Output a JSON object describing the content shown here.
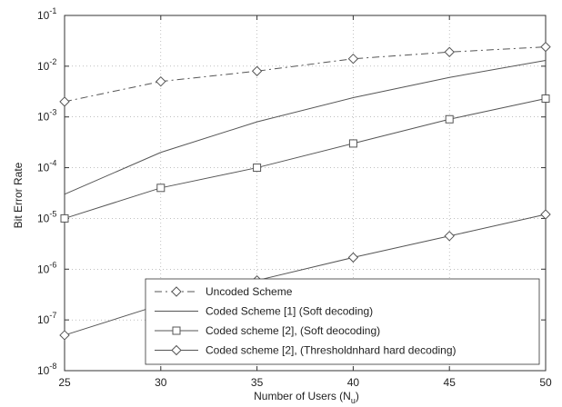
{
  "chart_data": {
    "type": "line",
    "title": "",
    "xlabel": "Number of Users (N",
    "xlabel_sub": "u",
    "xlabel_close": ")",
    "ylabel": "Bit Error Rate",
    "xlim": [
      25,
      50
    ],
    "ylim": [
      1e-08,
      0.1
    ],
    "yscale": "log",
    "grid": true,
    "legend_position": "bottom-right",
    "x_ticks": [
      "25",
      "30",
      "35",
      "40",
      "45",
      "50"
    ],
    "y_ticks": [
      {
        "base": "10",
        "exp": "-8"
      },
      {
        "base": "10",
        "exp": "-7"
      },
      {
        "base": "10",
        "exp": "-6"
      },
      {
        "base": "10",
        "exp": "-5"
      },
      {
        "base": "10",
        "exp": "-4"
      },
      {
        "base": "10",
        "exp": "-3"
      },
      {
        "base": "10",
        "exp": "-2"
      },
      {
        "base": "10",
        "exp": "-1"
      }
    ],
    "x": [
      25,
      30,
      35,
      40,
      45,
      50
    ],
    "series": [
      {
        "name": "Uncoded Scheme",
        "marker": "diamond",
        "line_style": "dash-dot",
        "color": "#555555",
        "values": [
          0.002,
          0.005,
          0.008,
          0.014,
          0.019,
          0.024
        ]
      },
      {
        "name": "Coded Scheme [1] (Soft decoding)",
        "marker": "none",
        "line_style": "solid",
        "color": "#555555",
        "values": [
          3e-05,
          0.0002,
          0.0008,
          0.0024,
          0.006,
          0.013
        ]
      },
      {
        "name": "Coded scheme [2], (Soft deocoding)",
        "marker": "square",
        "line_style": "solid",
        "color": "#555555",
        "values": [
          1e-05,
          4e-05,
          0.0001,
          0.0003,
          0.0009,
          0.0023
        ]
      },
      {
        "name": "Coded scheme [2], (Thresholdnhard hard decoding)",
        "marker": "diamond",
        "line_style": "solid",
        "color": "#555555",
        "values": [
          5e-08,
          2e-07,
          6e-07,
          1.7e-06,
          4.5e-06,
          1.2e-05
        ]
      }
    ]
  }
}
